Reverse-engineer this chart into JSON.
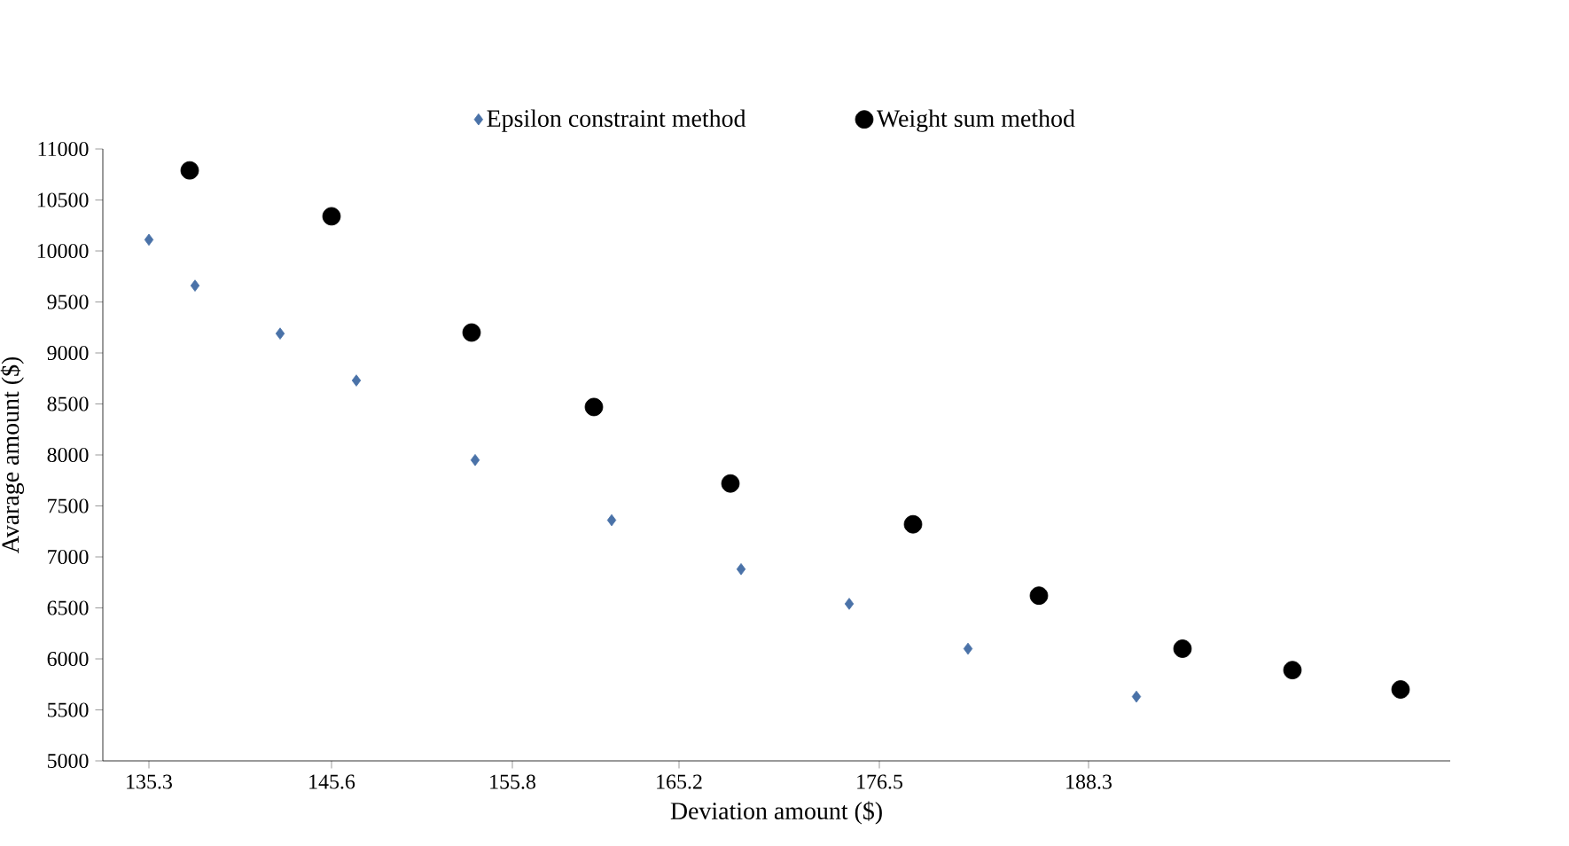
{
  "chart_data": {
    "type": "scatter",
    "xlabel": "Deviation amount ($)",
    "ylabel": "Avarage amount ($)",
    "xlim": [
      132.7,
      208.7
    ],
    "xticks": [
      135.3,
      145.6,
      155.8,
      165.2,
      176.5,
      188.3
    ],
    "ylim": [
      5000,
      11000
    ],
    "yticks": [
      5000,
      5500,
      6000,
      6500,
      7000,
      7500,
      8000,
      8500,
      9000,
      9500,
      10000,
      10500,
      11000
    ],
    "grid": false,
    "legend": "top",
    "series": [
      {
        "name": "Epsilon constraint method",
        "color": "#4a72a8",
        "marker": "diamond",
        "x": [
          135.3,
          137.9,
          142.7,
          147.0,
          153.7,
          161.4,
          168.7,
          174.8,
          181.5,
          191.0
        ],
        "values": [
          10110,
          9660,
          9190,
          8730,
          7950,
          7360,
          6880,
          6540,
          6100,
          5630
        ]
      },
      {
        "name": "Weight sum method",
        "color": "#000000",
        "marker": "circle",
        "x": [
          137.6,
          145.6,
          153.5,
          160.4,
          168.1,
          178.4,
          185.5,
          193.6,
          199.8,
          205.9
        ],
        "values": [
          10790,
          10340,
          9200,
          8470,
          7720,
          7320,
          6620,
          6100,
          5890,
          5700
        ]
      }
    ]
  }
}
